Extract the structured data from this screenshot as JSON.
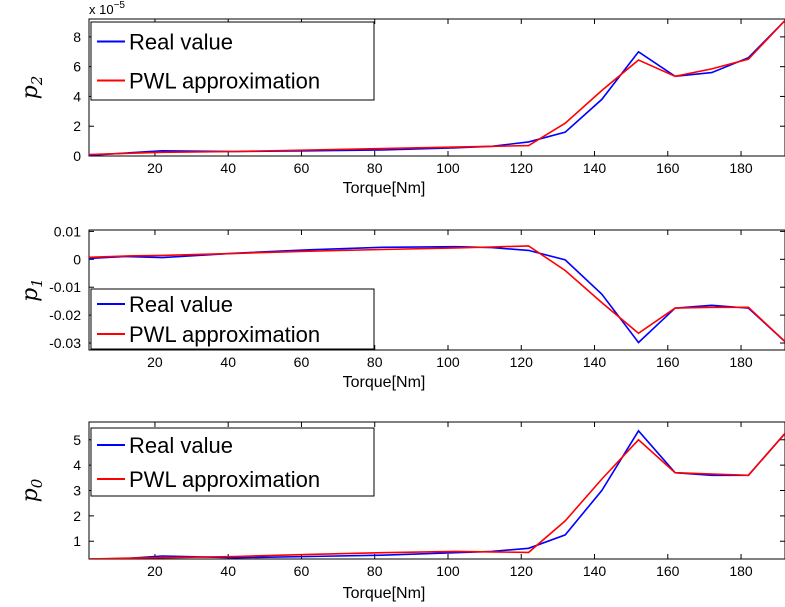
{
  "chart_data": [
    {
      "type": "line",
      "id": "p2",
      "ylabel": "p",
      "ylabel_sub": "2",
      "xlabel": "Torque[Nm]",
      "exponent_label": "x 10",
      "exponent_power": "−5",
      "xlim": [
        2,
        192
      ],
      "ylim": [
        0,
        9.2
      ],
      "xticks": [
        20,
        40,
        60,
        80,
        100,
        120,
        140,
        160,
        180
      ],
      "yticks": [
        0,
        2,
        4,
        6,
        8
      ],
      "ytick_labels": [
        "0",
        "2",
        "4",
        "6",
        "8"
      ],
      "legend": {
        "position": "top-left",
        "entries": [
          "Real value",
          "PWL approximation"
        ]
      },
      "series": [
        {
          "name": "Real value",
          "color": "#0000ff",
          "x": [
            2,
            22,
            42,
            62,
            82,
            102,
            112,
            122,
            132,
            142,
            152,
            162,
            172,
            182,
            192
          ],
          "y": [
            0.05,
            0.35,
            0.3,
            0.35,
            0.4,
            0.55,
            0.65,
            0.95,
            1.6,
            3.8,
            7.0,
            5.35,
            5.6,
            6.6,
            9.1
          ]
        },
        {
          "name": "PWL approximation",
          "color": "#ff0000",
          "x": [
            2,
            22,
            42,
            62,
            82,
            102,
            112,
            122,
            132,
            142,
            152,
            162,
            172,
            182,
            192
          ],
          "y": [
            0.1,
            0.25,
            0.3,
            0.4,
            0.5,
            0.6,
            0.65,
            0.7,
            2.2,
            4.4,
            6.45,
            5.35,
            5.85,
            6.5,
            9.1
          ]
        }
      ]
    },
    {
      "type": "line",
      "id": "p1",
      "ylabel": "p",
      "ylabel_sub": "1",
      "xlabel": "Torque[Nm]",
      "xlim": [
        2,
        192
      ],
      "ylim": [
        -0.0325,
        0.0105
      ],
      "xticks": [
        20,
        40,
        60,
        80,
        100,
        120,
        140,
        160,
        180
      ],
      "yticks": [
        0.01,
        0,
        -0.01,
        -0.02,
        -0.03
      ],
      "ytick_labels": [
        "0.01",
        "0",
        "-0.01",
        "-0.02",
        "-0.03"
      ],
      "legend": {
        "position": "bottom-left",
        "entries": [
          "Real value",
          "PWL approximation"
        ]
      },
      "series": [
        {
          "name": "Real value",
          "color": "#0000ff",
          "x": [
            2,
            12,
            22,
            42,
            62,
            82,
            102,
            112,
            122,
            132,
            142,
            152,
            162,
            172,
            182,
            192
          ],
          "y": [
            0.0003,
            0.001,
            0.0006,
            0.0022,
            0.0034,
            0.0043,
            0.0045,
            0.0042,
            0.0032,
            -0.0002,
            -0.0125,
            -0.0298,
            -0.0175,
            -0.0165,
            -0.0175,
            -0.0295
          ]
        },
        {
          "name": "PWL approximation",
          "color": "#ff0000",
          "x": [
            2,
            12,
            22,
            42,
            62,
            82,
            102,
            112,
            122,
            132,
            142,
            152,
            162,
            172,
            182,
            192
          ],
          "y": [
            0.0007,
            0.0012,
            0.0014,
            0.0021,
            0.0029,
            0.0035,
            0.0041,
            0.0044,
            0.0048,
            -0.004,
            -0.0155,
            -0.0265,
            -0.0175,
            -0.0172,
            -0.0172,
            -0.0295
          ]
        }
      ]
    },
    {
      "type": "line",
      "id": "p0",
      "ylabel": "p",
      "ylabel_sub": "0",
      "xlabel": "Torque[Nm]",
      "xlim": [
        2,
        192
      ],
      "ylim": [
        0.3,
        5.7
      ],
      "xticks": [
        20,
        40,
        60,
        80,
        100,
        120,
        140,
        160,
        180
      ],
      "yticks": [
        1,
        2,
        3,
        4,
        5
      ],
      "ytick_labels": [
        "1",
        "2",
        "3",
        "4",
        "5"
      ],
      "legend": {
        "position": "top-left",
        "entries": [
          "Real value",
          "PWL approximation"
        ]
      },
      "series": [
        {
          "name": "Real value",
          "color": "#0000ff",
          "x": [
            2,
            12,
            22,
            42,
            62,
            82,
            102,
            112,
            122,
            132,
            142,
            152,
            162,
            172,
            182,
            192
          ],
          "y": [
            0.3,
            0.32,
            0.42,
            0.35,
            0.4,
            0.45,
            0.55,
            0.6,
            0.72,
            1.25,
            3.0,
            5.35,
            3.7,
            3.6,
            3.6,
            5.25
          ]
        },
        {
          "name": "PWL approximation",
          "color": "#ff0000",
          "x": [
            2,
            12,
            22,
            42,
            62,
            82,
            102,
            112,
            122,
            132,
            142,
            152,
            162,
            172,
            182,
            192
          ],
          "y": [
            0.3,
            0.33,
            0.35,
            0.4,
            0.48,
            0.55,
            0.6,
            0.58,
            0.56,
            1.8,
            3.45,
            5.0,
            3.7,
            3.65,
            3.6,
            5.25
          ]
        }
      ]
    }
  ]
}
